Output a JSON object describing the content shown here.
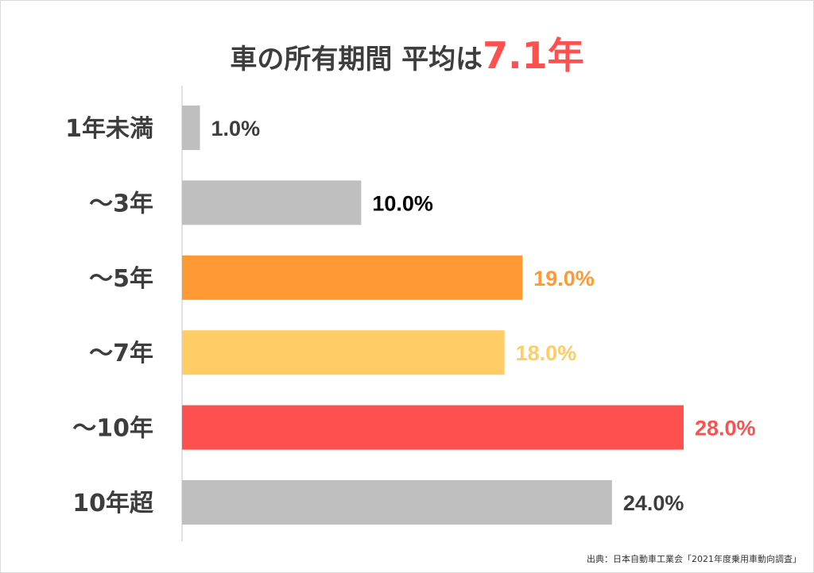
{
  "title": {
    "prefix": "車の所有期間 平均は",
    "highlight": "7.1年"
  },
  "source": "出典：日本自動車工業会「2021年度乗用車動向調査」",
  "chart_data": {
    "type": "bar",
    "orientation": "horizontal",
    "categories": [
      "1年未満",
      "～3年",
      "～5年",
      "～7年",
      "～10年",
      "10年超"
    ],
    "values": [
      1.0,
      10.0,
      19.0,
      18.0,
      28.0,
      24.0
    ],
    "value_labels": [
      "1.0%",
      "10.0%",
      "19.0%",
      "18.0%",
      "28.0%",
      "24.0%"
    ],
    "bar_colors": [
      "#bfbfbf",
      "#bfbfbf",
      "#ff9933",
      "#ffcc66",
      "#ff5050",
      "#bfbfbf"
    ],
    "label_colors": [
      "#3d3d3d",
      "#000000",
      "#ff9933",
      "#ffcc66",
      "#ff5050",
      "#3d3d3d"
    ],
    "xlim": [
      0,
      28
    ],
    "grid": false,
    "legend": "none"
  }
}
